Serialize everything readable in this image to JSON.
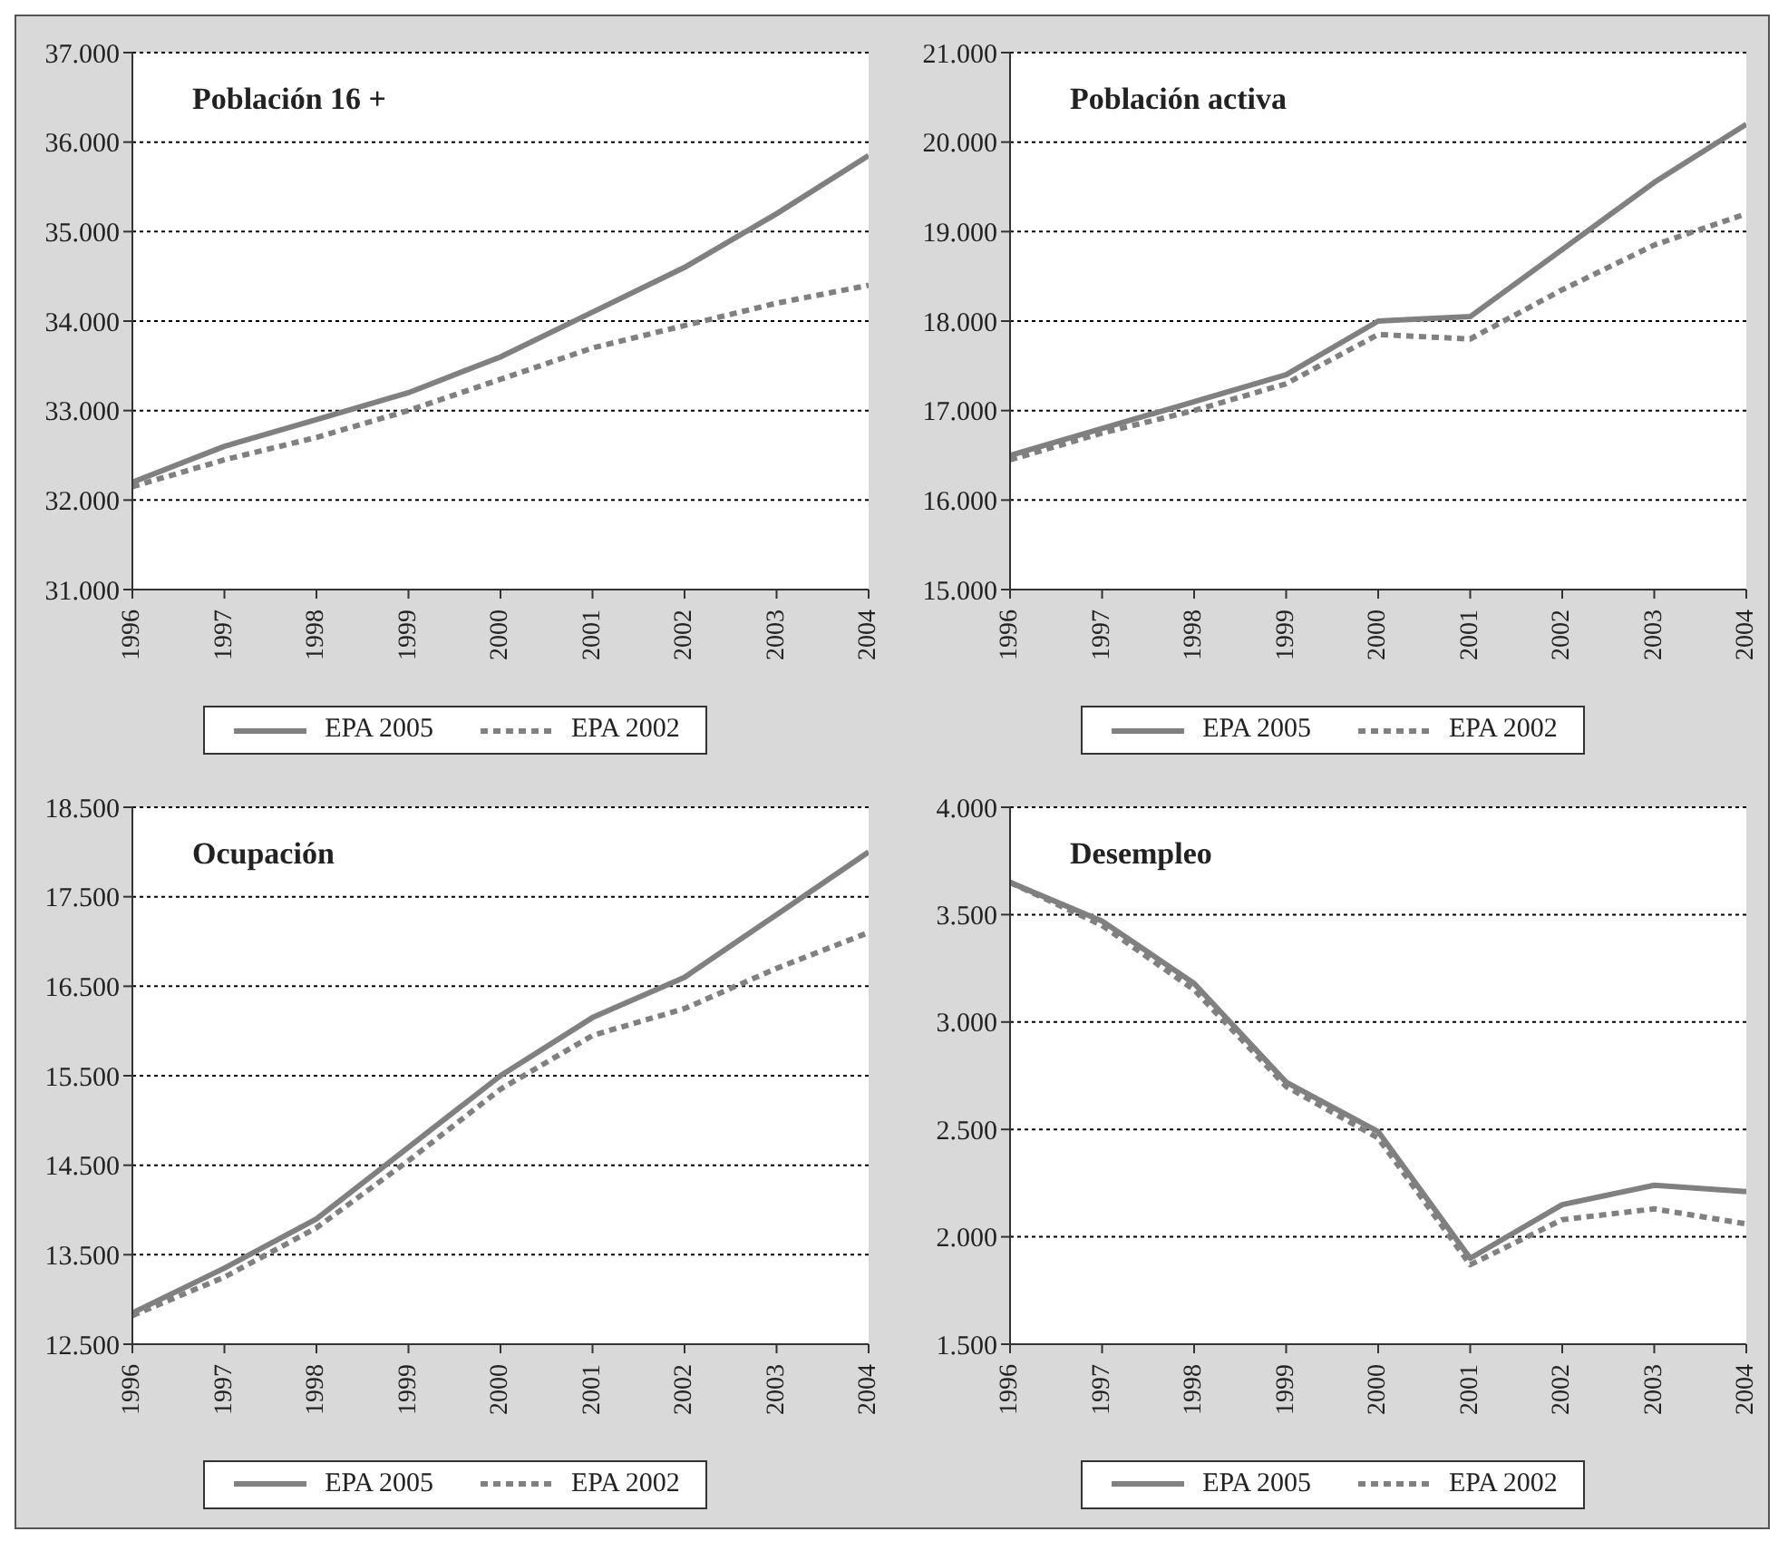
{
  "chart_data": [
    {
      "type": "line",
      "title": "Población 16 +",
      "x": [
        1996,
        1997,
        1998,
        1999,
        2000,
        2001,
        2002,
        2003,
        2004
      ],
      "xlim": [
        1996,
        2004
      ],
      "xticks": [
        1996,
        1997,
        1998,
        1999,
        2000,
        2001,
        2002,
        2003,
        2004
      ],
      "ylim": [
        31000,
        37000
      ],
      "yticks": [
        {
          "value": 31000,
          "label": "31.000"
        },
        {
          "value": 32000,
          "label": "32.000"
        },
        {
          "value": 33000,
          "label": "33.000"
        },
        {
          "value": 34000,
          "label": "34.000"
        },
        {
          "value": 35000,
          "label": "35.000"
        },
        {
          "value": 36000,
          "label": "36.000"
        },
        {
          "value": 37000,
          "label": "37.000"
        }
      ],
      "grid": "y",
      "legend": "bottom",
      "marker": "none",
      "series": [
        {
          "name": "EPA 2005",
          "color": "#808080",
          "line_style": "solid",
          "values": [
            32200,
            32600,
            32900,
            33200,
            33600,
            34100,
            34600,
            35200,
            35850
          ]
        },
        {
          "name": "EPA 2002",
          "color": "#808080",
          "line_style": "dotted",
          "values": [
            32150,
            32450,
            32700,
            33000,
            33350,
            33700,
            33950,
            34200,
            34400
          ]
        }
      ]
    },
    {
      "type": "line",
      "title": "Población activa",
      "x": [
        1996,
        1997,
        1998,
        1999,
        2000,
        2001,
        2002,
        2003,
        2004
      ],
      "xlim": [
        1996,
        2004
      ],
      "xticks": [
        1996,
        1997,
        1998,
        1999,
        2000,
        2001,
        2002,
        2003,
        2004
      ],
      "ylim": [
        15000,
        21000
      ],
      "yticks": [
        {
          "value": 15000,
          "label": "15.000"
        },
        {
          "value": 16000,
          "label": "16.000"
        },
        {
          "value": 17000,
          "label": "17.000"
        },
        {
          "value": 18000,
          "label": "18.000"
        },
        {
          "value": 19000,
          "label": "19.000"
        },
        {
          "value": 20000,
          "label": "20.000"
        },
        {
          "value": 21000,
          "label": "21.000"
        }
      ],
      "grid": "y",
      "legend": "bottom",
      "marker": "none",
      "series": [
        {
          "name": "EPA 2005",
          "color": "#808080",
          "line_style": "solid",
          "values": [
            16500,
            16800,
            17100,
            17400,
            18000,
            18050,
            18800,
            19550,
            20200
          ]
        },
        {
          "name": "EPA 2002",
          "color": "#808080",
          "line_style": "dotted",
          "values": [
            16450,
            16750,
            17000,
            17300,
            17850,
            17800,
            18350,
            18850,
            19200
          ]
        }
      ]
    },
    {
      "type": "line",
      "title": "Ocupación",
      "x": [
        1996,
        1997,
        1998,
        1999,
        2000,
        2001,
        2002,
        2003,
        2004
      ],
      "xlim": [
        1996,
        2004
      ],
      "xticks": [
        1996,
        1997,
        1998,
        1999,
        2000,
        2001,
        2002,
        2003,
        2004
      ],
      "ylim": [
        12500,
        18500
      ],
      "yticks": [
        {
          "value": 12500,
          "label": "12.500"
        },
        {
          "value": 13500,
          "label": "13.500"
        },
        {
          "value": 14500,
          "label": "14.500"
        },
        {
          "value": 15500,
          "label": "15.500"
        },
        {
          "value": 16500,
          "label": "16.500"
        },
        {
          "value": 17500,
          "label": "17.500"
        },
        {
          "value": 18500,
          "label": "18.500"
        }
      ],
      "grid": "y",
      "legend": "bottom",
      "marker": "none",
      "series": [
        {
          "name": "EPA 2005",
          "color": "#808080",
          "line_style": "solid",
          "values": [
            12850,
            13350,
            13900,
            14700,
            15500,
            16150,
            16600,
            17300,
            18000
          ]
        },
        {
          "name": "EPA 2002",
          "color": "#808080",
          "line_style": "dotted",
          "values": [
            12820,
            13250,
            13800,
            14550,
            15350,
            15950,
            16250,
            16700,
            17100
          ]
        }
      ]
    },
    {
      "type": "line",
      "title": "Desempleo",
      "x": [
        1996,
        1997,
        1998,
        1999,
        2000,
        2001,
        2002,
        2003,
        2004
      ],
      "xlim": [
        1996,
        2004
      ],
      "xticks": [
        1996,
        1997,
        1998,
        1999,
        2000,
        2001,
        2002,
        2003,
        2004
      ],
      "ylim": [
        1500,
        4000
      ],
      "yticks": [
        {
          "value": 1500,
          "label": "1.500"
        },
        {
          "value": 2000,
          "label": "2.000"
        },
        {
          "value": 2500,
          "label": "2.500"
        },
        {
          "value": 3000,
          "label": "3.000"
        },
        {
          "value": 3500,
          "label": "3.500"
        },
        {
          "value": 4000,
          "label": "4.000"
        }
      ],
      "grid": "y",
      "legend": "bottom",
      "marker": "none",
      "series": [
        {
          "name": "EPA 2005",
          "color": "#808080",
          "line_style": "solid",
          "values": [
            3650,
            3470,
            3180,
            2720,
            2490,
            1900,
            2150,
            2240,
            2210
          ]
        },
        {
          "name": "EPA 2002",
          "color": "#808080",
          "line_style": "dotted",
          "values": [
            3650,
            3450,
            3150,
            2700,
            2460,
            1870,
            2080,
            2130,
            2060
          ]
        }
      ]
    }
  ]
}
